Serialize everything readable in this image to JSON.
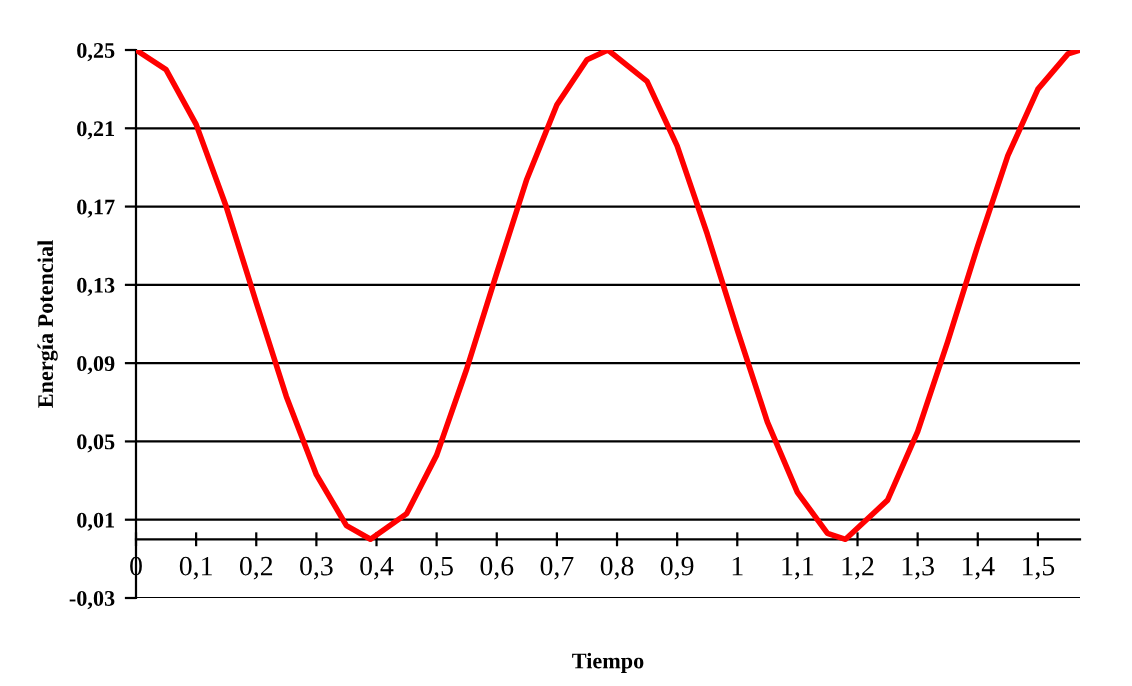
{
  "chart_data": {
    "type": "line",
    "xlabel": "Tiempo",
    "ylabel": "Energía Potencial",
    "x": [
      0,
      0.05,
      0.1,
      0.15,
      0.2,
      0.25,
      0.3,
      0.35,
      0.39,
      0.45,
      0.5,
      0.55,
      0.6,
      0.65,
      0.7,
      0.75,
      0.785,
      0.85,
      0.9,
      0.95,
      1.0,
      1.05,
      1.1,
      1.15,
      1.18,
      1.25,
      1.3,
      1.35,
      1.4,
      1.45,
      1.5,
      1.55,
      1.57
    ],
    "series": [
      {
        "color": "#ff0000",
        "values": [
          0.25,
          0.24,
          0.212,
          0.17,
          0.121,
          0.073,
          0.033,
          0.007,
          0.0,
          0.013,
          0.043,
          0.087,
          0.136,
          0.184,
          0.222,
          0.245,
          0.25,
          0.234,
          0.201,
          0.156,
          0.107,
          0.06,
          0.024,
          0.003,
          0.0,
          0.02,
          0.055,
          0.101,
          0.15,
          0.196,
          0.23,
          0.248,
          0.25
        ]
      }
    ],
    "xlim": [
      0,
      1.57
    ],
    "xticks": [
      0,
      {
        "value": 0.1,
        "label": "0,1"
      },
      {
        "value": 0.2,
        "label": "0,2"
      },
      {
        "value": 0.3,
        "label": "0,3"
      },
      {
        "value": 0.4,
        "label": "0,4"
      },
      {
        "value": 0.5,
        "label": "0,5"
      },
      {
        "value": 0.6,
        "label": "0,6"
      },
      {
        "value": 0.7,
        "label": "0,7"
      },
      {
        "value": 0.8,
        "label": "0,8"
      },
      {
        "value": 0.9,
        "label": "0,9"
      },
      1,
      {
        "value": 1.1,
        "label": "1,1"
      },
      {
        "value": 1.2,
        "label": "1,2"
      },
      {
        "value": 1.3,
        "label": "1,3"
      },
      {
        "value": 1.4,
        "label": "1,4"
      },
      {
        "value": 1.5,
        "label": "1,5"
      }
    ],
    "ylim": [
      -0.03,
      0.25
    ],
    "yticks": [
      {
        "value": -0.03,
        "label": "-0,03"
      },
      {
        "value": 0.01,
        "label": "0,01"
      },
      {
        "value": 0.05,
        "label": "0,05"
      },
      {
        "value": 0.09,
        "label": "0,09"
      },
      {
        "value": 0.13,
        "label": "0,13"
      },
      {
        "value": 0.17,
        "label": "0,17"
      },
      {
        "value": 0.21,
        "label": "0,21"
      },
      {
        "value": 0.25,
        "label": "0,25"
      }
    ],
    "grid": "y",
    "line_style": "solid",
    "marker": "none"
  }
}
